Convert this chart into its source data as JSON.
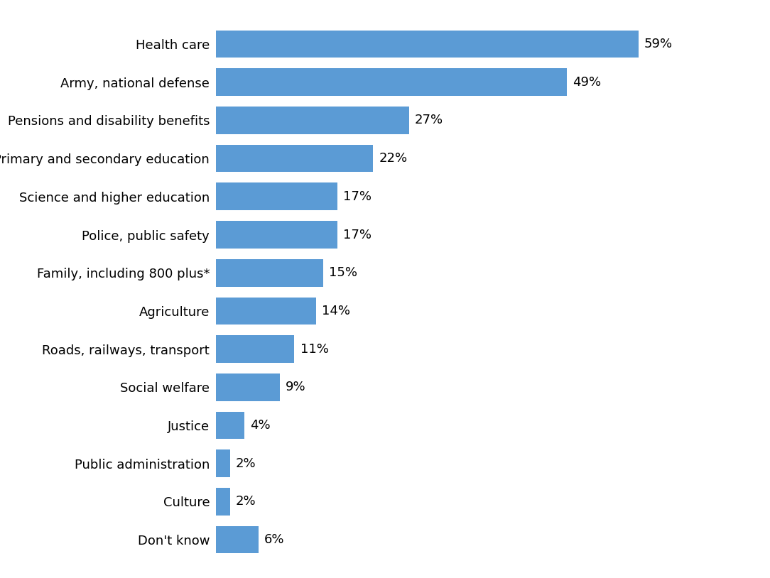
{
  "categories": [
    "Health care",
    "Army, national defense",
    "Pensions and disability benefits",
    "Primary and secondary education",
    "Science and higher education",
    "Police, public safety",
    "Family, including 800 plus*",
    "Agriculture",
    "Roads, railways, transport",
    "Social welfare",
    "Justice",
    "Public administration",
    "Culture",
    "Don't know"
  ],
  "values": [
    59,
    49,
    27,
    22,
    17,
    17,
    15,
    14,
    11,
    9,
    4,
    2,
    2,
    6
  ],
  "bar_color": "#5b9bd5",
  "label_fontsize": 13,
  "value_fontsize": 13,
  "background_color": "#ffffff",
  "xlim": [
    0,
    72
  ],
  "bar_height": 0.72
}
